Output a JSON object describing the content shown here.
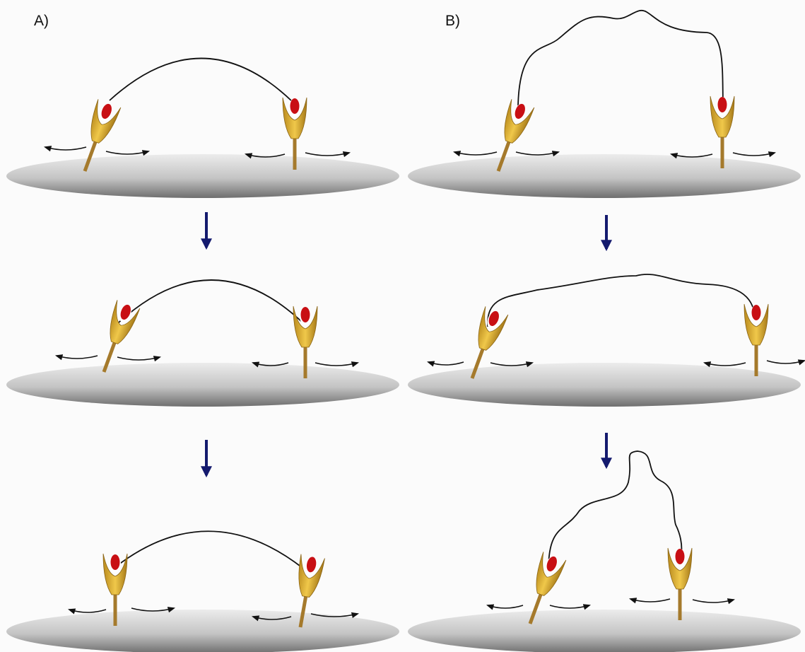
{
  "panels": [
    {
      "label": "A)"
    },
    {
      "label": "B)"
    }
  ]
}
